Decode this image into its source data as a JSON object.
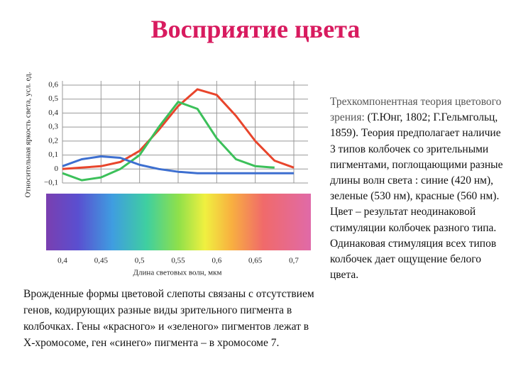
{
  "slide": {
    "title": "Восприятие цвета",
    "left_text": "Врожденные формы цветовой слепоты связаны с отсутствием генов, кодирующих разные виды зрительного пигмента в колбочках. Гены «красного» и «зеленого» пигментов лежат в Х-хромосоме, ген «синего» пигмента – в хромосоме 7.",
    "right_text_lead": "Трехкомпонентная теория цветового зрения:",
    "right_text_body": "(Т.Юнг, 1802; Г.Гельмгольц, 1859). Теория предполагает наличие 3 типов колбочек со зрительными пигментами, поглощающими разные длины волн света : синие (420 нм), зеленые (530 нм), красные (560 нм). Цвет – результат неодинаковой стимуляции колбочек разного типа. Одинаковая стимуляция всех типов колбочек дает ощущение белого цвета."
  },
  "chart_data": {
    "type": "line",
    "x_label": "Длина световых волн, мкм",
    "y_label": "Относительная яркость света, усл. ед.",
    "x": [
      0.4,
      0.425,
      0.45,
      0.475,
      0.5,
      0.525,
      0.55,
      0.575,
      0.6,
      0.625,
      0.65,
      0.675,
      0.7
    ],
    "series": [
      {
        "color": "#e8452c",
        "values": [
          0,
          0.01,
          0.02,
          0.05,
          0.13,
          0.28,
          0.45,
          0.57,
          0.53,
          0.38,
          0.2,
          0.06,
          0.01
        ]
      },
      {
        "color": "#3cc05a",
        "values": [
          -0.03,
          -0.08,
          -0.06,
          0.0,
          0.1,
          0.3,
          0.48,
          0.43,
          0.22,
          0.07,
          0.02,
          0.01,
          null
        ]
      },
      {
        "color": "#3d6fd0",
        "values": [
          0.02,
          0.07,
          0.09,
          0.08,
          0.03,
          0.0,
          -0.02,
          -0.03,
          -0.03,
          -0.03,
          -0.03,
          -0.03,
          -0.03
        ]
      }
    ],
    "xlim": [
      0.4,
      0.7
    ],
    "xticks": [
      {
        "value": 0.4,
        "label": "0,4"
      },
      {
        "value": 0.45,
        "label": "0,45"
      },
      {
        "value": 0.5,
        "label": "0,5"
      },
      {
        "value": 0.55,
        "label": "0,55"
      },
      {
        "value": 0.6,
        "label": "0,6"
      },
      {
        "value": 0.65,
        "label": "0,65"
      },
      {
        "value": 0.7,
        "label": "0,7"
      }
    ],
    "ylim": [
      -0.1,
      0.6
    ],
    "yticks": [
      {
        "value": -0.1,
        "label": "−0,1"
      },
      0,
      {
        "value": 0.1,
        "label": "0,1"
      },
      {
        "value": 0.2,
        "label": "0,2"
      },
      {
        "value": 0.3,
        "label": "0,3"
      },
      {
        "value": 0.4,
        "label": "0,4"
      },
      {
        "value": 0.5,
        "label": "0,5"
      },
      {
        "value": 0.6,
        "label": "0,6"
      }
    ],
    "grid": true
  }
}
